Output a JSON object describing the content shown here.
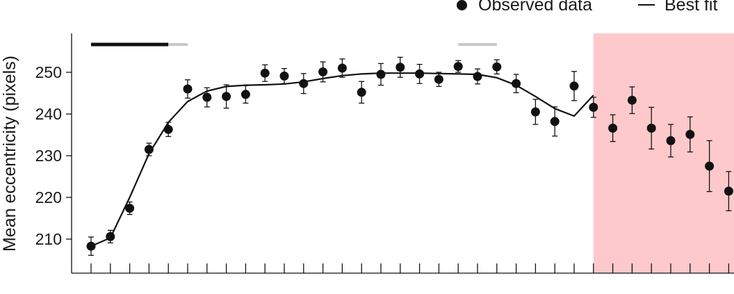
{
  "chart_data": {
    "type": "scatter",
    "title": "",
    "xlabel": "",
    "ylabel": "Mean eccentricity (pixels)",
    "ylim": [
      203,
      259
    ],
    "xlim": [
      0,
      34
    ],
    "yticks": [
      210,
      220,
      230,
      240,
      250
    ],
    "legend": {
      "placement": "top-right",
      "entries": [
        "Observed data",
        "Best fit"
      ]
    },
    "series": [
      {
        "name": "Observed data",
        "kind": "points-with-error-bars",
        "color": "#111111",
        "x": [
          1,
          2,
          3,
          4,
          5,
          6,
          7,
          8,
          9,
          10,
          11,
          12,
          13,
          14,
          15,
          16,
          17,
          18,
          19,
          20,
          21,
          22,
          23,
          24,
          25,
          26,
          27,
          28,
          29,
          30,
          31,
          32,
          33,
          34
        ],
        "y": [
          208.3,
          210.6,
          217.4,
          231.5,
          236.3,
          246.0,
          244.0,
          244.2,
          244.7,
          249.8,
          249.1,
          247.3,
          250.1,
          251.0,
          245.2,
          249.5,
          251.2,
          249.6,
          248.3,
          251.4,
          249.0,
          251.3,
          247.3,
          240.5,
          238.2,
          246.7,
          241.6,
          236.6,
          243.3,
          236.6,
          233.6,
          235.1,
          227.5,
          221.5
        ],
        "err": [
          2.2,
          1.5,
          1.5,
          1.5,
          1.7,
          2.2,
          2.3,
          2.8,
          2.1,
          2.0,
          1.8,
          2.4,
          2.4,
          2.2,
          2.6,
          2.6,
          2.4,
          2.3,
          1.7,
          1.4,
          1.8,
          1.7,
          2.2,
          3.0,
          3.5,
          3.5,
          2.4,
          3.2,
          3.2,
          5.0,
          3.9,
          4.2,
          6.1,
          4.7
        ]
      },
      {
        "name": "Best fit",
        "kind": "line",
        "color": "#111111",
        "x": [
          1,
          2,
          3,
          4,
          5,
          6,
          7,
          8,
          9,
          10,
          11,
          12,
          13,
          14,
          15,
          16,
          17,
          18,
          19,
          20,
          21,
          22,
          23,
          24,
          25,
          26,
          27
        ],
        "y": [
          208.3,
          210.3,
          220.0,
          230.5,
          238.0,
          243.0,
          245.5,
          246.6,
          246.9,
          247.0,
          247.2,
          247.7,
          248.5,
          249.2,
          249.6,
          249.8,
          249.8,
          249.8,
          249.7,
          249.6,
          249.5,
          248.7,
          246.9,
          244.2,
          241.3,
          239.5,
          244.5
        ]
      }
    ],
    "annotations": {
      "bar_black": {
        "x": [
          1,
          5
        ],
        "color": "#111111"
      },
      "bar_gray_left": {
        "x": [
          5,
          6
        ],
        "color": "#c8c8c8"
      },
      "bar_gray_right": {
        "x": [
          20,
          22
        ],
        "color": "#c8c8c8"
      },
      "shaded_region": {
        "x": [
          27,
          34.8
        ],
        "color": "#fdc9cb"
      }
    }
  }
}
